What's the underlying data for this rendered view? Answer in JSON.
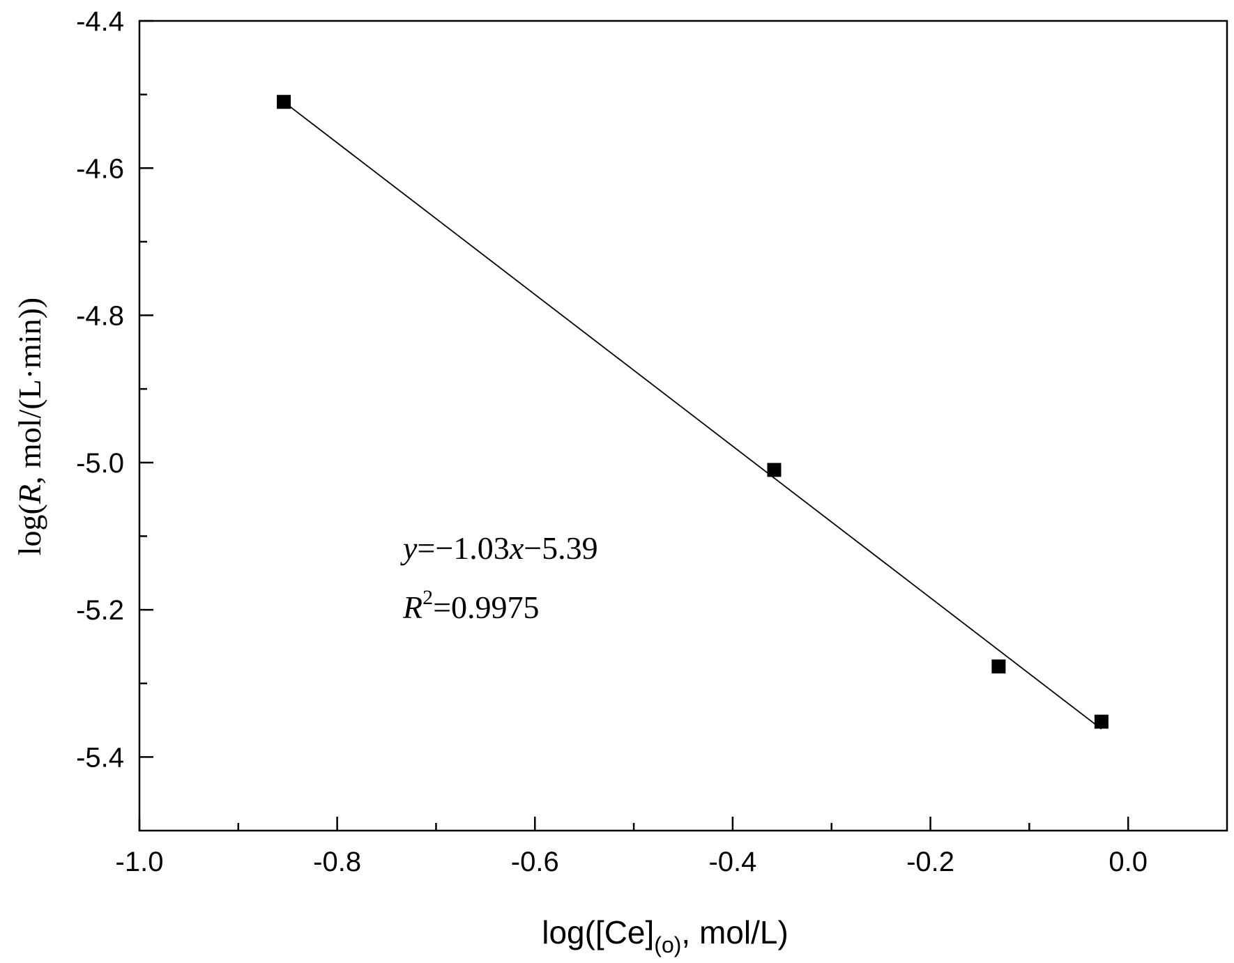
{
  "chart_data": {
    "type": "scatter",
    "title": "",
    "xlabel": {
      "prefix": "log([Ce]",
      "subscript": "(o)",
      "suffix": ", mol/L)"
    },
    "ylabel": {
      "prefix": "log(",
      "italic": "R",
      "suffix": ", mol/(L·min))"
    },
    "xlim": [
      -1.0,
      0.1
    ],
    "ylim": [
      -5.5,
      -4.4
    ],
    "x_ticks": [
      -1.0,
      -0.8,
      -0.6,
      -0.4,
      -0.2,
      0.0
    ],
    "x_tick_labels": [
      "-1.0",
      "-0.8",
      "-0.6",
      "-0.4",
      "-0.2",
      "0.0"
    ],
    "x_minor_ticks": [
      -0.9,
      -0.7,
      -0.5,
      -0.3,
      -0.1
    ],
    "y_ticks": [
      -4.4,
      -4.6,
      -4.8,
      -5.0,
      -5.2,
      -5.4
    ],
    "y_tick_labels": [
      "-4.4",
      "-4.6",
      "-4.8",
      "-5.0",
      "-5.2",
      "-5.4"
    ],
    "y_minor_ticks": [
      -4.5,
      -4.7,
      -4.9,
      -5.1,
      -5.3
    ],
    "grid": false,
    "legend": "none",
    "series": [
      {
        "marker": "square",
        "color": "#000000",
        "x": [
          -0.854,
          -0.358,
          -0.131,
          -0.027
        ],
        "y": [
          -4.51,
          -5.01,
          -5.277,
          -5.352
        ]
      }
    ],
    "fit_line": {
      "x": [
        -0.854,
        -0.027
      ],
      "y": [
        -4.51,
        -5.362
      ],
      "color": "#000000"
    },
    "annotations": {
      "equation": {
        "v1": "y",
        "t1": "=−1.03",
        "v2": "x",
        "t2": "−5.39"
      },
      "r_squared": {
        "v1": "R",
        "sup": "2",
        "t1": "=0.9975"
      }
    }
  }
}
